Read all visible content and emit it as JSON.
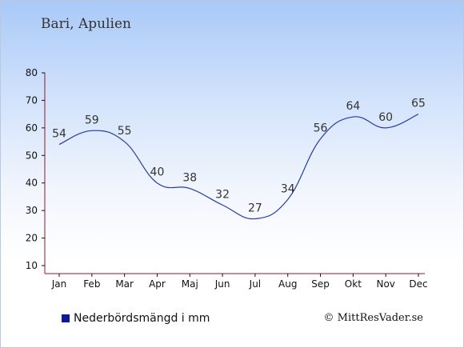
{
  "page": {
    "title": "Bari, Apulien"
  },
  "chart_data": {
    "type": "line",
    "title": "Bari, Apulien",
    "xlabel": "",
    "ylabel": "",
    "categories": [
      "Jan",
      "Feb",
      "Mar",
      "Apr",
      "Maj",
      "Jun",
      "Jul",
      "Aug",
      "Sep",
      "Okt",
      "Nov",
      "Dec"
    ],
    "series": [
      {
        "name": "Nederbördsmängd i mm",
        "values": [
          54,
          59,
          55,
          40,
          38,
          32,
          27,
          34,
          56,
          64,
          60,
          65
        ]
      }
    ],
    "ylim": [
      10,
      80
    ],
    "yticks": [
      10,
      20,
      30,
      40,
      50,
      60,
      70,
      80
    ],
    "grid": false,
    "legend": "bottom-left",
    "line_color": "#2a3aa8",
    "axis_color": "#8b1a2a"
  },
  "legend": {
    "label": "Nederbördsmängd i mm",
    "swatch_color": "#0a1aa0"
  },
  "footer": {
    "copyright": "© MittResVader.se"
  }
}
